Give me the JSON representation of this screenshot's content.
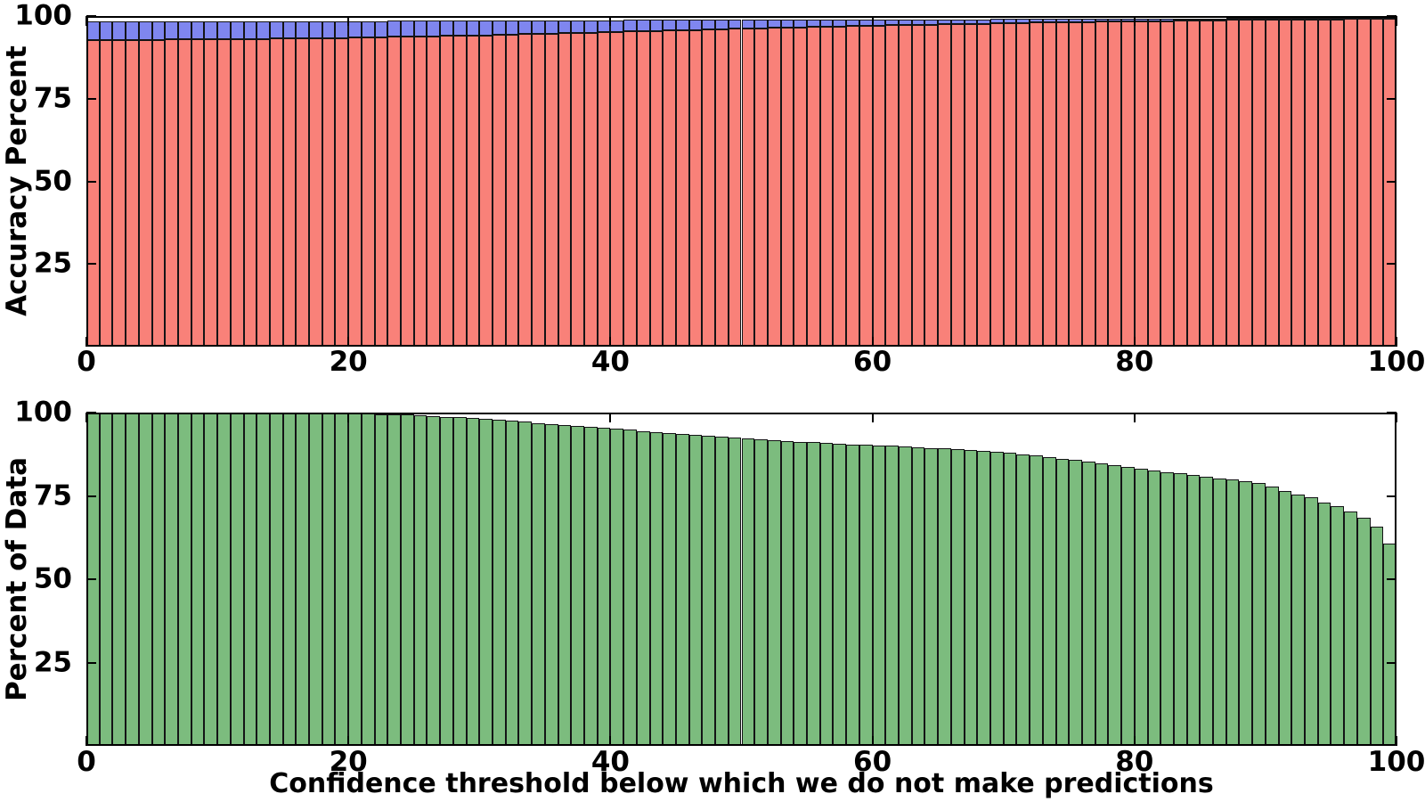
{
  "chart_data": [
    {
      "type": "bar",
      "subplot": "top",
      "title": "",
      "xlabel": "",
      "ylabel": "Accuracy Percent",
      "x_description": "confidence threshold bins, integer bar starts 0-99, bar width 1",
      "xlim": [
        0,
        100
      ],
      "ylim": [
        0,
        100
      ],
      "xticks": [
        0,
        20,
        40,
        60,
        80,
        100
      ],
      "yticks": [
        25,
        50,
        75,
        100
      ],
      "grid": false,
      "legend": "none",
      "stacked": true,
      "series": [
        {
          "name": "accuracy-red",
          "color": "#f98179",
          "role": "bottom stacked segment (bar height from 0)",
          "values": [
            92.8,
            92.8,
            92.8,
            92.8,
            92.8,
            92.8,
            92.9,
            92.9,
            92.9,
            93.0,
            93.0,
            93.0,
            93.1,
            93.1,
            93.2,
            93.2,
            93.3,
            93.3,
            93.4,
            93.4,
            93.5,
            93.5,
            93.6,
            93.7,
            93.7,
            93.8,
            93.9,
            94.0,
            94.1,
            94.2,
            94.2,
            94.3,
            94.4,
            94.5,
            94.6,
            94.7,
            94.8,
            94.9,
            95.0,
            95.1,
            95.2,
            95.3,
            95.4,
            95.5,
            95.6,
            95.7,
            95.8,
            95.9,
            96.0,
            96.1,
            96.2,
            96.3,
            96.4,
            96.5,
            96.6,
            96.7,
            96.8,
            96.9,
            97.0,
            97.1,
            97.1,
            97.2,
            97.3,
            97.4,
            97.4,
            97.5,
            97.6,
            97.7,
            97.7,
            97.8,
            97.9,
            97.9,
            98.0,
            98.1,
            98.1,
            98.2,
            98.2,
            98.3,
            98.3,
            98.4,
            98.4,
            98.5,
            98.5,
            98.6,
            98.6,
            98.7,
            98.7,
            98.8,
            98.8,
            98.8,
            98.9,
            98.9,
            99.0,
            99.0,
            99.0,
            99.0,
            99.1,
            99.1,
            99.1,
            99.1
          ]
        },
        {
          "name": "accuracy-upper-blue",
          "color": "#7f86ef",
          "role": "upper stacked segment; values give the TOP edge of the blue band (band spans from red value to this value)",
          "values": [
            98.3,
            98.3,
            98.3,
            98.3,
            98.3,
            98.4,
            98.4,
            98.4,
            98.4,
            98.4,
            98.4,
            98.4,
            98.4,
            98.4,
            98.5,
            98.5,
            98.5,
            98.5,
            98.5,
            98.5,
            98.5,
            98.5,
            98.5,
            98.6,
            98.6,
            98.6,
            98.6,
            98.6,
            98.6,
            98.6,
            98.6,
            98.6,
            98.7,
            98.7,
            98.7,
            98.7,
            98.7,
            98.7,
            98.7,
            98.7,
            98.7,
            98.8,
            98.8,
            98.8,
            98.8,
            98.8,
            98.8,
            98.8,
            98.8,
            98.8,
            98.9,
            98.9,
            98.9,
            98.9,
            98.9,
            98.9,
            98.9,
            98.9,
            98.9,
            99.0,
            99.0,
            99.0,
            99.0,
            99.0,
            99.0,
            99.0,
            99.0,
            99.0,
            99.0,
            99.1,
            99.1,
            99.1,
            99.1,
            99.1,
            99.1,
            99.1,
            99.1,
            99.1,
            99.2,
            99.2,
            99.2,
            99.2,
            99.2,
            99.2,
            99.2,
            99.2,
            99.2,
            99.3,
            99.3,
            99.3,
            99.3,
            99.3,
            99.3,
            99.3,
            99.3,
            99.3,
            99.4,
            99.4,
            99.4,
            99.4
          ]
        }
      ]
    },
    {
      "type": "bar",
      "subplot": "bottom",
      "title": "",
      "xlabel": "Confidence threshold below which we do not make predictions",
      "ylabel": "Percent of Data",
      "x_description": "confidence threshold bins, integer bar starts 0-99, bar width 1",
      "xlim": [
        0,
        100
      ],
      "ylim": [
        0,
        100
      ],
      "xticks": [
        0,
        20,
        40,
        60,
        80,
        100
      ],
      "yticks": [
        25,
        50,
        75,
        100
      ],
      "grid": false,
      "legend": "none",
      "stacked": false,
      "series": [
        {
          "name": "percent-of-data-green",
          "color": "#7cbc7e",
          "role": "bar height from 0",
          "values": [
            100,
            100,
            100,
            100,
            100,
            100,
            100,
            100,
            100,
            100,
            100,
            100,
            100,
            100,
            100,
            100,
            100,
            99.9,
            99.9,
            99.8,
            99.8,
            99.7,
            99.6,
            99.5,
            99.4,
            99.2,
            99.0,
            98.8,
            98.6,
            98.4,
            98.1,
            97.8,
            97.5,
            97.2,
            96.9,
            96.6,
            96.3,
            96.0,
            95.7,
            95.4,
            95.1,
            94.8,
            94.5,
            94.2,
            93.9,
            93.6,
            93.3,
            93.0,
            92.8,
            92.5,
            92.3,
            92.0,
            91.8,
            91.5,
            91.3,
            91.1,
            90.9,
            90.7,
            90.5,
            90.3,
            90.2,
            90.0,
            89.8,
            89.6,
            89.4,
            89.2,
            89.0,
            88.8,
            88.5,
            88.2,
            87.9,
            87.5,
            87.1,
            86.7,
            86.2,
            85.7,
            85.2,
            84.7,
            84.2,
            83.7,
            83.2,
            82.7,
            82.2,
            81.7,
            81.2,
            80.7,
            80.3,
            79.9,
            79.5,
            78.8,
            77.7,
            76.6,
            75.3,
            74.5,
            73.1,
            71.8,
            70.4,
            68.5,
            65.9,
            60.8
          ]
        }
      ]
    }
  ],
  "style": {
    "bar_edge_color": "#141416",
    "spine_color": "#000000",
    "tick_color": "#000000",
    "background": "#ffffff"
  }
}
